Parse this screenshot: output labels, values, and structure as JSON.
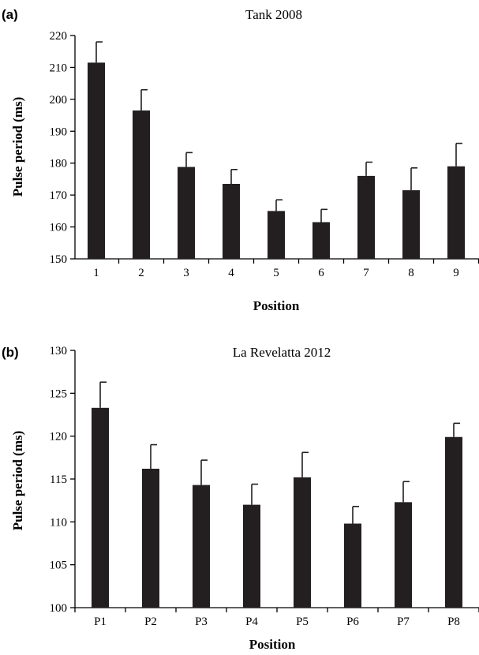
{
  "chart_data": [
    {
      "panel": "(a)",
      "type": "bar",
      "title": "Tank 2008",
      "xlabel": "Position",
      "ylabel": "Pulse period (ms)",
      "categories": [
        "1",
        "2",
        "3",
        "4",
        "5",
        "6",
        "7",
        "8",
        "9"
      ],
      "values": [
        211.5,
        196.5,
        178.8,
        173.5,
        165.0,
        161.5,
        176.0,
        171.5,
        179.0
      ],
      "error": [
        6.5,
        6.5,
        4.5,
        4.5,
        3.5,
        4.0,
        4.3,
        7.0,
        7.2
      ],
      "ylim": [
        150,
        220
      ],
      "yticks": [
        150,
        160,
        170,
        180,
        190,
        200,
        210,
        220
      ],
      "bar_color": "#231f20",
      "grid": false
    },
    {
      "panel": "(b)",
      "type": "bar",
      "title": "La Revelatta 2012",
      "xlabel": "Position",
      "ylabel": "Pulse period (ms)",
      "categories": [
        "P1",
        "P2",
        "P3",
        "P4",
        "P5",
        "P6",
        "P7",
        "P8"
      ],
      "values": [
        123.3,
        116.2,
        114.3,
        112.0,
        115.2,
        109.8,
        112.3,
        119.9
      ],
      "error": [
        3.0,
        2.8,
        2.9,
        2.4,
        2.9,
        2.0,
        2.4,
        1.6
      ],
      "ylim": [
        100,
        130
      ],
      "yticks": [
        100,
        105,
        110,
        115,
        120,
        125,
        130
      ],
      "bar_color": "#231f20",
      "grid": false
    }
  ]
}
